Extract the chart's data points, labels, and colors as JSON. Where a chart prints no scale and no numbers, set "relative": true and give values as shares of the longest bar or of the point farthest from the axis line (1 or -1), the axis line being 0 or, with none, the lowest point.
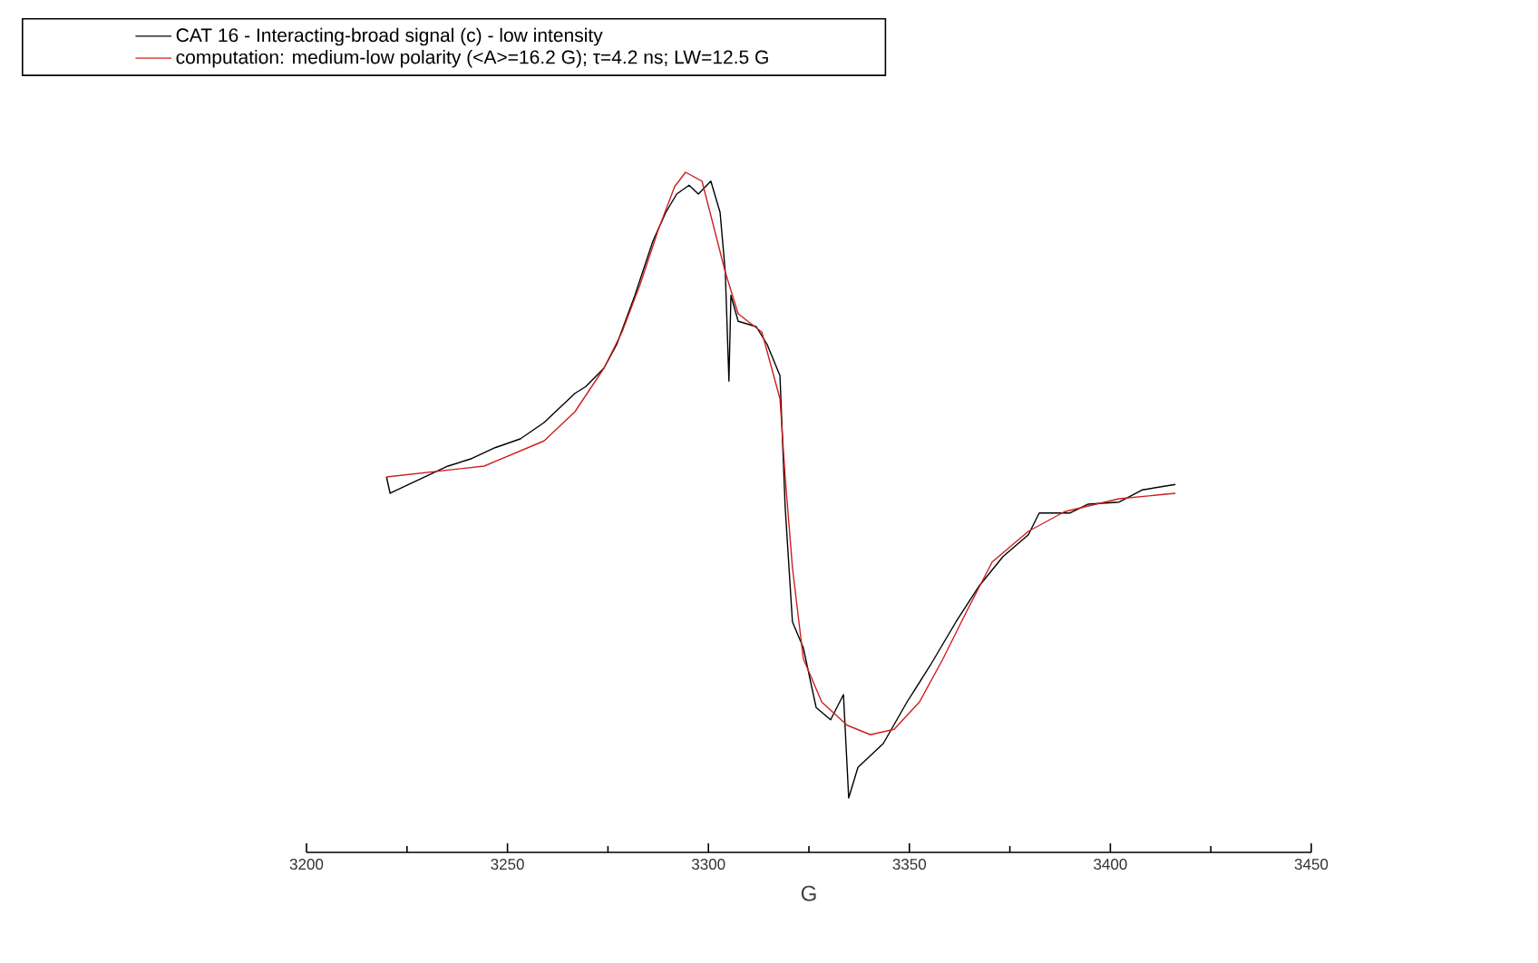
{
  "chart_data": {
    "type": "line",
    "relative": true,
    "xlabel": "G",
    "xlim": [
      3200,
      3450
    ],
    "xticks": [
      3200,
      {
        "value": 3225,
        "label": null
      },
      3250,
      {
        "value": 3275,
        "label": null
      },
      3300,
      {
        "value": 3325,
        "label": null
      },
      3350,
      {
        "value": 3375,
        "label": null
      },
      3400,
      {
        "value": 3425,
        "label": null
      },
      3450
    ],
    "legend": "top",
    "series": [
      {
        "name": "CAT 16 - Interacting-broad signal (c) - low intensity",
        "color": "#000000",
        "x": [
          3219.9,
          3220.8,
          3235.2,
          3241.1,
          3246.9,
          3253.2,
          3259.1,
          3266.8,
          3269.5,
          3274.0,
          3277.2,
          3281.7,
          3286.2,
          3289.4,
          3292.1,
          3295.2,
          3297.5,
          3300.6,
          3302.9,
          3304.2,
          3305.1,
          3305.6,
          3307.4,
          3311.9,
          3314.6,
          3317.8,
          3319.1,
          3320.9,
          3323.6,
          3326.8,
          3330.4,
          3333.6,
          3334.9,
          3337.2,
          3343.5,
          3349.4,
          3355.2,
          3361.6,
          3367.4,
          3373.3,
          3379.6,
          3382.3,
          3390.0,
          3394.5,
          3402.2,
          3408.0,
          3416.2
        ],
        "values": [
          0.552,
          0.528,
          0.568,
          0.579,
          0.595,
          0.608,
          0.632,
          0.675,
          0.685,
          0.712,
          0.747,
          0.819,
          0.899,
          0.941,
          0.968,
          0.981,
          0.968,
          0.987,
          0.941,
          0.853,
          0.693,
          0.819,
          0.781,
          0.773,
          0.747,
          0.701,
          0.507,
          0.339,
          0.301,
          0.213,
          0.195,
          0.232,
          0.08,
          0.125,
          0.16,
          0.221,
          0.275,
          0.339,
          0.392,
          0.435,
          0.467,
          0.499,
          0.499,
          0.512,
          0.515,
          0.533,
          0.541
        ]
      },
      {
        "name": "computation: medium-low polarity (<A>=16.2 G); τ=4.2 ns; LW=12.5 G",
        "color": "#cc1f1f",
        "x": [
          3219.9,
          3244.2,
          3259.1,
          3266.8,
          3274.0,
          3278.5,
          3283.0,
          3287.5,
          3291.6,
          3294.3,
          3298.4,
          3301.1,
          3304.2,
          3307.4,
          3313.3,
          3317.8,
          3319.1,
          3320.9,
          3323.6,
          3328.2,
          3334.5,
          3340.3,
          3346.2,
          3352.5,
          3358.4,
          3364.3,
          3370.6,
          3379.6,
          3388.6,
          3402.2,
          3416.2
        ],
        "values": [
          0.552,
          0.568,
          0.605,
          0.648,
          0.712,
          0.765,
          0.835,
          0.915,
          0.979,
          1.0,
          0.987,
          0.925,
          0.853,
          0.792,
          0.765,
          0.667,
          0.552,
          0.419,
          0.285,
          0.221,
          0.187,
          0.173,
          0.181,
          0.221,
          0.285,
          0.355,
          0.427,
          0.472,
          0.501,
          0.52,
          0.528
        ]
      }
    ]
  }
}
